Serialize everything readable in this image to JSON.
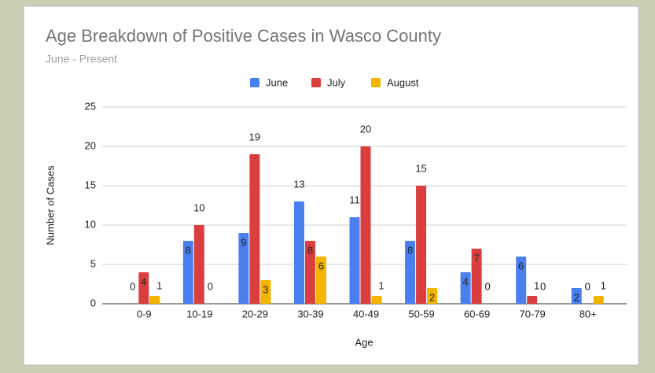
{
  "chart_data": {
    "type": "bar",
    "title": "Age Breakdown of Positive Cases in Wasco County",
    "subtitle": "June - Present",
    "x_label": "Age",
    "y_label": "Number of Cases",
    "categories": [
      "0-9",
      "10-19",
      "20-29",
      "30-39",
      "40-49",
      "50-59",
      "60-69",
      "70-79",
      "80+"
    ],
    "series": [
      {
        "name": "June",
        "color": "#4a7ff0",
        "values": [
          0,
          8,
          9,
          13,
          11,
          8,
          4,
          6,
          2
        ]
      },
      {
        "name": "July",
        "color": "#db3e3e",
        "values": [
          4,
          10,
          19,
          8,
          20,
          15,
          7,
          1,
          0
        ]
      },
      {
        "name": "August",
        "color": "#f4b400",
        "values": [
          1,
          0,
          3,
          6,
          1,
          2,
          0,
          0,
          1
        ]
      }
    ],
    "ylim": [
      0,
      25
    ],
    "yticks": [
      0,
      5,
      10,
      15,
      20,
      25
    ],
    "grid": true,
    "legend": "top"
  }
}
